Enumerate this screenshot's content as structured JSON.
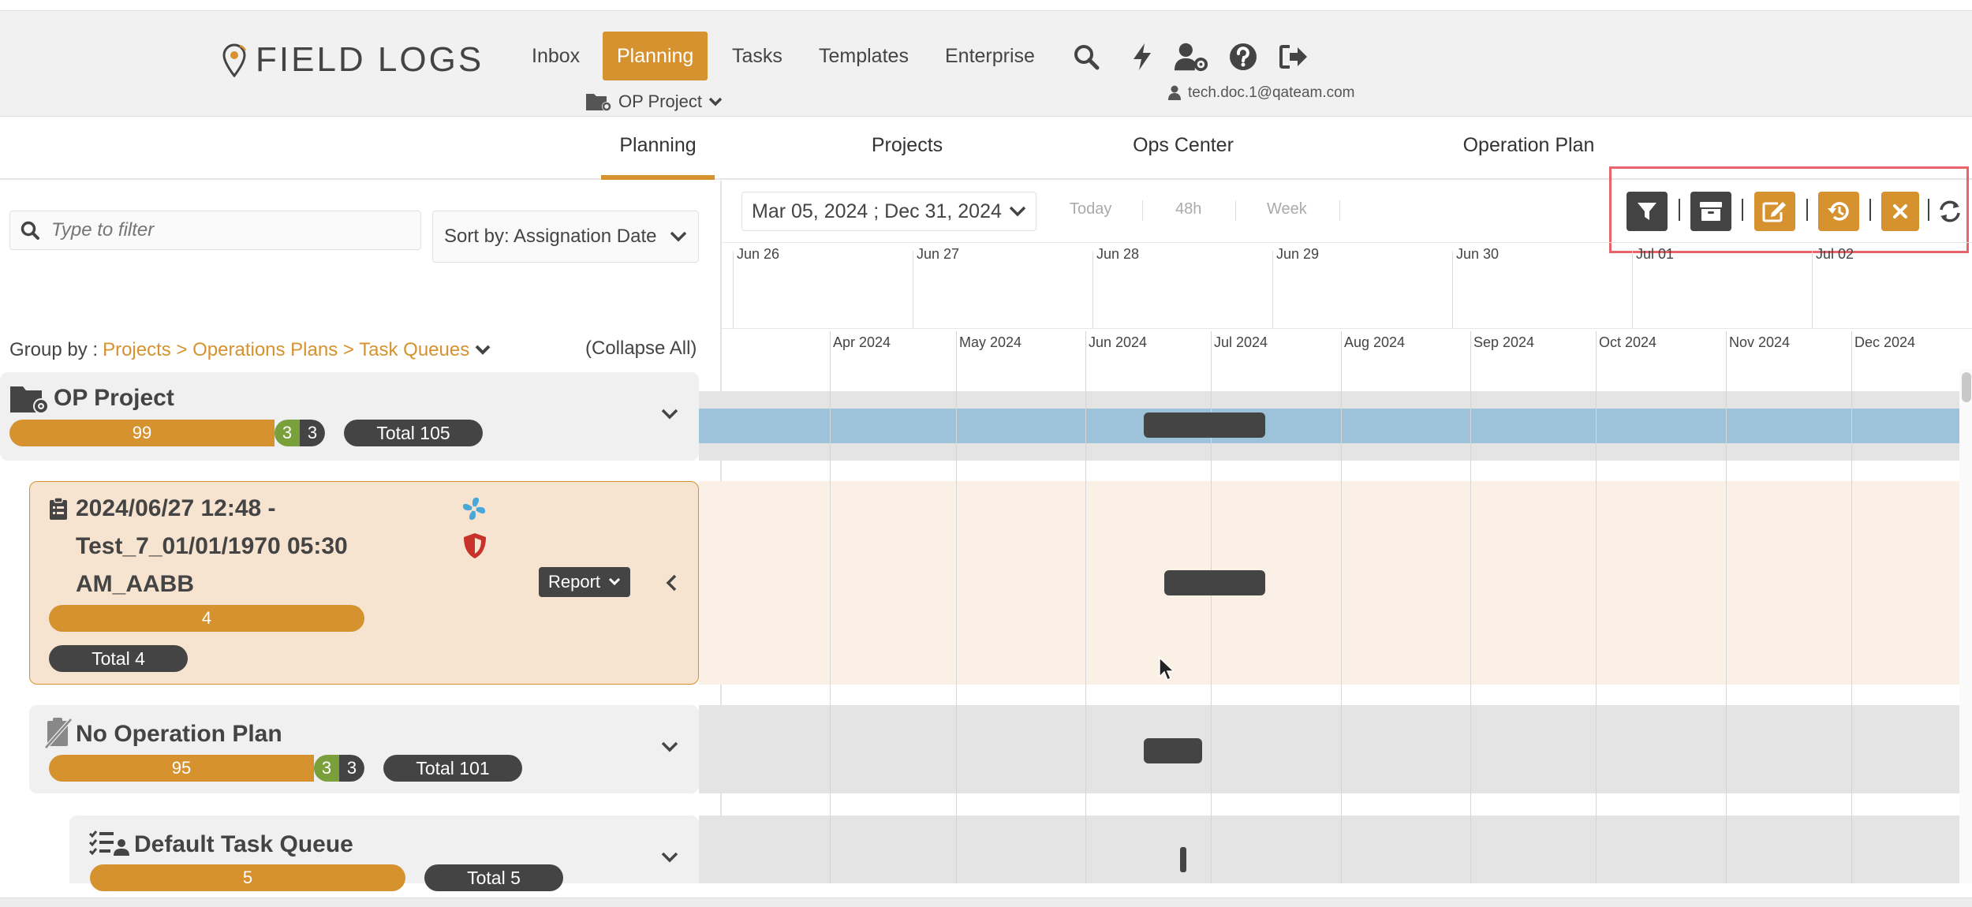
{
  "app": {
    "logo_text": "FIELD LOGS"
  },
  "nav": {
    "items": [
      "Inbox",
      "Planning",
      "Tasks",
      "Templates",
      "Enterprise"
    ],
    "active": "Planning",
    "project_label": "OP Project",
    "user_email": "tech.doc.1@qateam.com"
  },
  "subtabs": [
    "Planning",
    "Projects",
    "Ops Center",
    "Operation Plan"
  ],
  "filter": {
    "placeholder": "Type to filter"
  },
  "sort": {
    "label": "Sort by: Assignation Date"
  },
  "groupby": {
    "prefix": "Group by :",
    "path": "Projects > Operations Plans > Task Queues",
    "collapse_label": "(Collapse All)"
  },
  "timeline": {
    "date_range": "Mar 05, 2024 ; Dec 31, 2024",
    "quick": [
      "Today",
      "48h",
      "Week"
    ],
    "days": [
      "Jun 26",
      "Jun 27",
      "Jun 28",
      "Jun 29",
      "Jun 30",
      "Jul 01",
      "Jul 02"
    ],
    "months": [
      "Apr 2024",
      "May 2024",
      "Jun 2024",
      "Jul 2024",
      "Aug 2024",
      "Sep 2024",
      "Oct 2024",
      "Nov 2024",
      "Dec 2024"
    ]
  },
  "toolbar": {
    "buttons": [
      "filter-icon",
      "archive-icon",
      "edit-icon",
      "history-icon",
      "close-icon"
    ],
    "refresh": "refresh-icon"
  },
  "colors": {
    "accent": "#d6922f",
    "dark": "#444444",
    "green": "#79a03a",
    "project_bar": "#9dc3db",
    "alert_red": "#c8322a",
    "fan_blue": "#4aa8d8"
  },
  "rows": {
    "project": {
      "title": "OP Project",
      "progress": {
        "main": "99",
        "green": "3",
        "dark": "3"
      },
      "total": "Total 105"
    },
    "plan": {
      "title_line1": "2024/06/27 12:48 -",
      "title_line2": "Test_7_01/01/1970 05:30",
      "title_line3": "AM_AABB",
      "progress": "4",
      "total": "Total 4",
      "report_label": "Report"
    },
    "no_plan": {
      "title": "No Operation Plan",
      "progress": {
        "main": "95",
        "green": "3",
        "dark": "3"
      },
      "total": "Total 101"
    },
    "queue": {
      "title": "Default Task Queue",
      "progress": "5",
      "total": "Total 5"
    }
  }
}
